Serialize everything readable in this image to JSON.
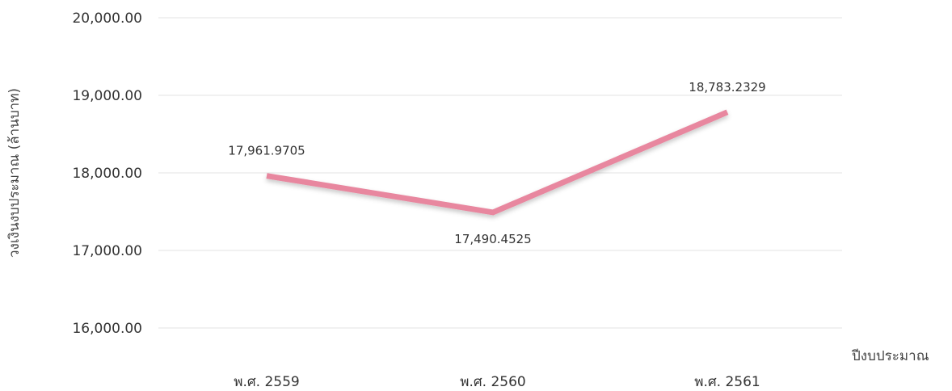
{
  "chart_data": {
    "type": "line",
    "categories": [
      "พ.ศ. 2559",
      "พ.ศ. 2560",
      "พ.ศ. 2561"
    ],
    "series": [
      {
        "values": [
          17961.9705,
          17490.4525,
          18783.2329
        ],
        "color": "#e8879f"
      }
    ],
    "data_labels": [
      "17,961.9705",
      "17,490.4525",
      "18,783.2329"
    ],
    "y_ticks": [
      16000,
      17000,
      18000,
      19000,
      20000
    ],
    "y_tick_labels": [
      "16,000.00",
      "17,000.00",
      "18,000.00",
      "19,000.00",
      "20,000.00"
    ],
    "ylim": [
      16000,
      20000
    ],
    "ylabel": "วงเงินงบประมาณ (ล้านบาท)",
    "xlabel": "ปีงบประมาณ",
    "grid": true
  }
}
